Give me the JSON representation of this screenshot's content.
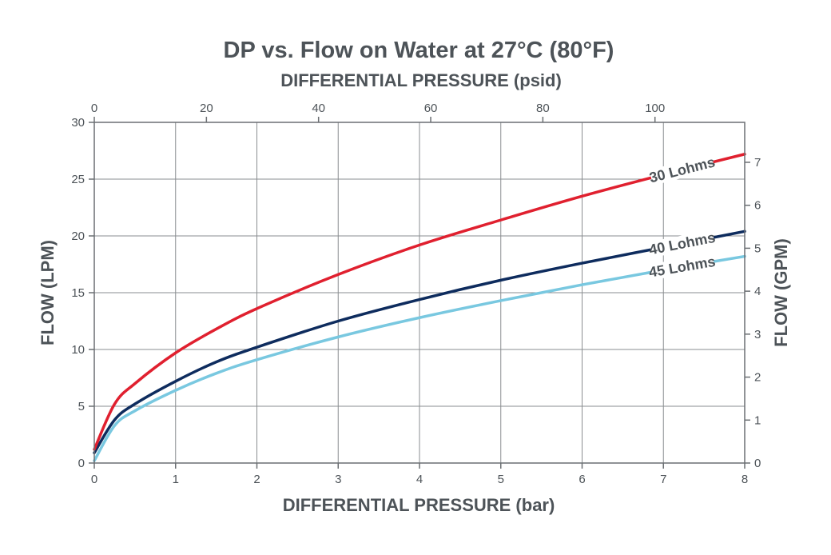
{
  "chart_data": {
    "type": "line",
    "title": "DP vs. Flow on Water at 27°C (80°F)",
    "xlabel": "DIFFERENTIAL PRESSURE (bar)",
    "x2label": "DIFFERENTIAL PRESSURE (psid)",
    "ylabel": "FLOW (LPM)",
    "y2label": "FLOW (GPM)",
    "xlim": [
      0,
      8
    ],
    "ylim": [
      0,
      30
    ],
    "x2lim": [
      0,
      116
    ],
    "y2lim": [
      0,
      7.93
    ],
    "xticks": [
      "0",
      "1",
      "2",
      "3",
      "4",
      "5",
      "6",
      "7",
      "8"
    ],
    "yticks": [
      "0",
      "5",
      "10",
      "15",
      "20",
      "25",
      "30"
    ],
    "x2ticks": [
      {
        "value": 0,
        "label": "0"
      },
      {
        "value": 20,
        "label": "20"
      },
      {
        "value": 40,
        "label": "40"
      },
      {
        "value": 60,
        "label": "60"
      },
      {
        "value": 80,
        "label": "80"
      },
      {
        "value": 100,
        "label": "100"
      }
    ],
    "y2ticks": [
      {
        "value": 0,
        "label": "0"
      },
      {
        "value": 1,
        "label": "1"
      },
      {
        "value": 2,
        "label": "2"
      },
      {
        "value": 3,
        "label": "3"
      },
      {
        "value": 4,
        "label": "4"
      },
      {
        "value": 5,
        "label": "5"
      },
      {
        "value": 6,
        "label": "6"
      },
      {
        "value": 7,
        "label": "7"
      }
    ],
    "grid": true,
    "series": [
      {
        "name": "30 Lohms",
        "color": "#e0202f",
        "x": [
          0,
          0.25,
          0.5,
          1,
          1.5,
          2,
          3,
          4,
          5,
          6,
          7,
          8
        ],
        "y": [
          1.2,
          5.2,
          7.0,
          9.7,
          11.8,
          13.6,
          16.6,
          19.2,
          21.4,
          23.5,
          25.4,
          27.2
        ]
      },
      {
        "name": "40 Lohms",
        "color": "#0e2c5e",
        "x": [
          0,
          0.25,
          0.5,
          1,
          1.5,
          2,
          3,
          4,
          5,
          6,
          7,
          8
        ],
        "y": [
          0.9,
          3.8,
          5.2,
          7.2,
          8.9,
          10.2,
          12.5,
          14.4,
          16.1,
          17.6,
          19.0,
          20.4
        ]
      },
      {
        "name": "45 Lohms",
        "color": "#79c8e0",
        "x": [
          0,
          0.25,
          0.5,
          1,
          1.5,
          2,
          3,
          4,
          5,
          6,
          7,
          8
        ],
        "y": [
          0.2,
          3.3,
          4.6,
          6.4,
          7.9,
          9.1,
          11.1,
          12.8,
          14.3,
          15.7,
          17.0,
          18.2
        ]
      }
    ]
  }
}
